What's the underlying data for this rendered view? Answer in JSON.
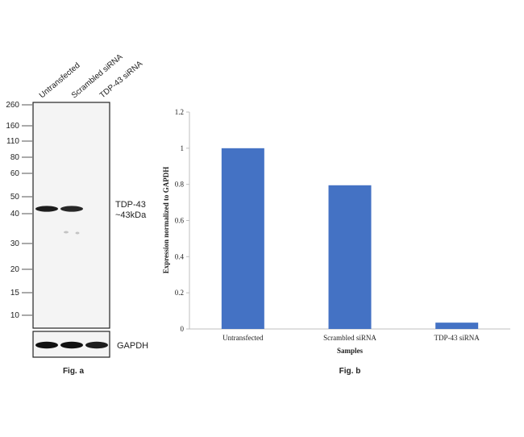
{
  "colors": {
    "bar": "#4472C4",
    "axis": "#bfbfbf",
    "band": "#111111",
    "blot_border": "#222222",
    "text": "#222222"
  },
  "fig_a": {
    "caption": "Fig. a",
    "lanes": [
      "Untransfected",
      "Scrambled siRNA",
      "TDP-43 siRNA"
    ],
    "ladder_marks": [
      "260",
      "160",
      "110",
      "80",
      "60",
      "50",
      "40",
      "30",
      "20",
      "15",
      "10"
    ],
    "band_label_line1": "TDP-43",
    "band_label_line2": "~43kDa",
    "loading_label": "GAPDH",
    "band_intensity": [
      0.95,
      0.9,
      0
    ],
    "gapdh_intensity": [
      1,
      1,
      0.95
    ]
  },
  "fig_b": {
    "caption": "Fig. b"
  },
  "chart_data": {
    "type": "bar",
    "title": "",
    "categories": [
      "Untransfected",
      "Scrambled siRNA",
      "TDP-43 siRNA"
    ],
    "values": [
      1.0,
      0.795,
      0.035
    ],
    "xlabel": "Samples",
    "ylabel": "Expression normalized to GAPDH",
    "ylim": [
      0,
      1.2
    ],
    "yticks": [
      "0",
      "0.2",
      "0.4",
      "0.6",
      "0.8",
      "1",
      "1.2"
    ],
    "grid": false,
    "legend": "none"
  }
}
